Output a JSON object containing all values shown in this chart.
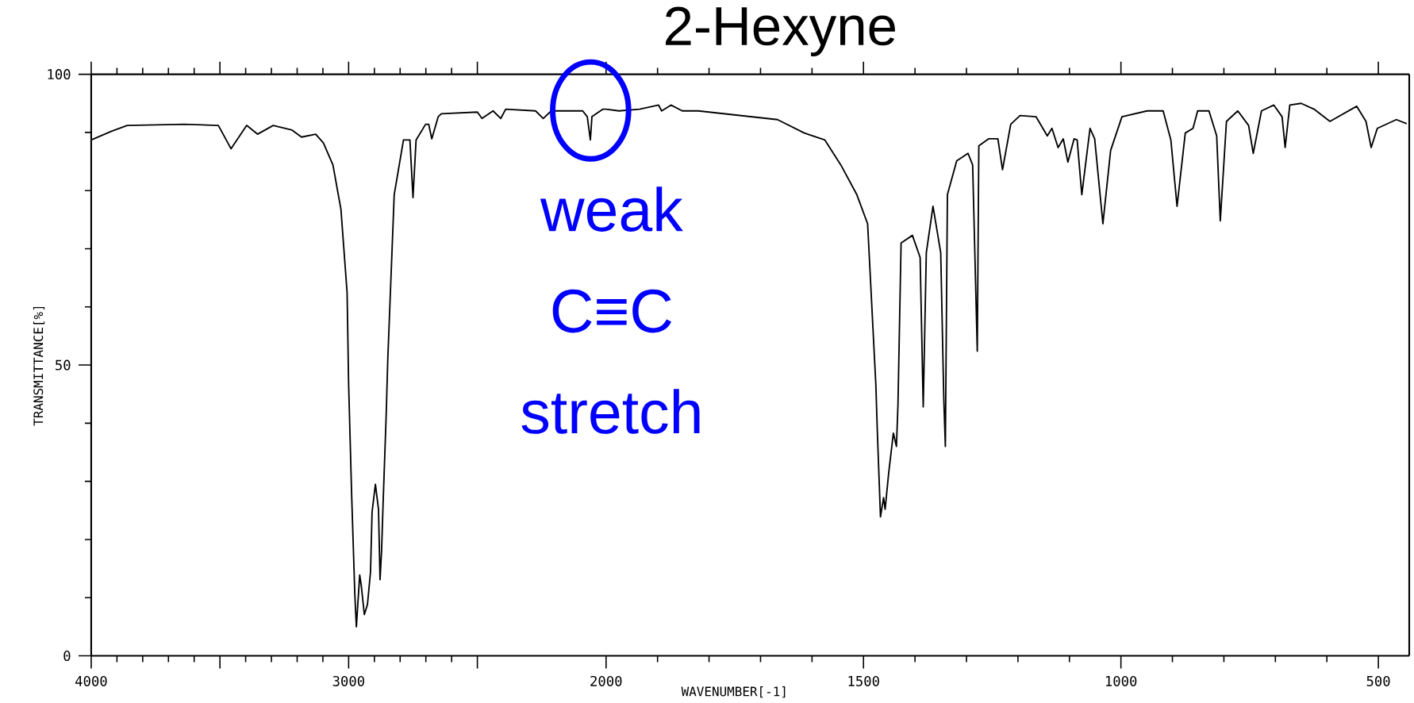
{
  "chart_data": [
    {
      "type": "line",
      "ylabel": "TRANSMITTANCE[%]",
      "annotations": [
        {
          "text": "weak C≡C stretch",
          "x": 2060,
          "y": 88.7
        }
      ],
      "x": [
        4000,
        3921,
        3860,
        3640,
        3506,
        3457,
        3396,
        3354,
        3293,
        3220,
        3183,
        3128,
        3098,
        3061,
        3030,
        3006,
        3000,
        2988,
        2976,
        2970,
        2957,
        2951,
        2939,
        2927,
        2915,
        2909,
        2896,
        2884,
        2878,
        2872,
        2866,
        2854,
        2848,
        2823,
        2787,
        2762,
        2750,
        2738,
        2701,
        2689,
        2677,
        2652,
        2640,
        2500,
        2482,
        2439,
        2409,
        2390,
        2274,
        2244,
        2213,
        2091,
        2073,
        2061,
        2055,
        2012,
        2000
      ],
      "series": [
        {
          "color": "#000000",
          "values": [
            88.7,
            90.2,
            91.2,
            91.4,
            91.2,
            87.2,
            91.2,
            89.7,
            91.2,
            90.4,
            89.2,
            89.7,
            88.2,
            84.4,
            76.8,
            62.5,
            46.6,
            27.2,
            10.6,
            5.0,
            13.9,
            12.1,
            7.1,
            8.8,
            14.4,
            24.7,
            29.5,
            25.2,
            13.1,
            18.1,
            26.4,
            41.6,
            50.9,
            79.3,
            88.7,
            88.7,
            78.8,
            88.7,
            91.4,
            91.4,
            88.9,
            92.7,
            93.2,
            93.5,
            92.4,
            93.7,
            92.4,
            94.0,
            93.7,
            92.4,
            93.7,
            93.7,
            92.7,
            88.7,
            92.7,
            94.0,
            94.0
          ]
        }
      ],
      "xlim": [
        4000,
        2000
      ],
      "ylim": [
        0,
        100
      ],
      "xticks": [
        4000,
        {
          "value": 3500,
          "label": null
        },
        3000,
        {
          "value": 2500,
          "label": null
        }
      ],
      "yticks": [
        0,
        50,
        100
      ],
      "marker": "none",
      "line_style": "solid"
    },
    {
      "type": "line",
      "title": "2-Hexyne",
      "xlabel": "WAVENUMBER[-1]",
      "x": [
        2000,
        1975,
        1935,
        1898,
        1892,
        1874,
        1852,
        1821,
        1667,
        1615,
        1575,
        1544,
        1513,
        1492,
        1476,
        1473,
        1467,
        1461,
        1458,
        1451,
        1442,
        1436,
        1433,
        1427,
        1405,
        1390,
        1384,
        1378,
        1365,
        1350,
        1344,
        1341,
        1337,
        1319,
        1297,
        1288,
        1279,
        1276,
        1257,
        1239,
        1230,
        1214,
        1196,
        1165,
        1143,
        1134,
        1122,
        1112,
        1103,
        1091,
        1085,
        1076,
        1060,
        1051,
        1035,
        1020,
        998,
        949,
        918,
        903,
        891,
        875,
        860,
        851,
        829,
        814,
        807,
        795,
        773,
        752,
        743,
        727,
        703,
        687,
        681,
        672,
        650,
        625,
        594,
        542,
        524,
        514,
        502,
        465,
        445
      ],
      "series": [
        {
          "color": "#000000",
          "values": [
            94.0,
            93.7,
            94.0,
            94.7,
            93.7,
            94.7,
            93.7,
            93.7,
            92.2,
            89.9,
            88.7,
            84.4,
            79.3,
            74.3,
            46.6,
            38.3,
            23.9,
            27.2,
            25.2,
            31.5,
            38.3,
            36.0,
            43.3,
            71.0,
            72.3,
            68.5,
            42.8,
            69.3,
            77.3,
            69.3,
            44.1,
            36.0,
            79.3,
            85.1,
            86.4,
            84.4,
            52.4,
            87.7,
            88.9,
            88.9,
            83.6,
            91.4,
            92.9,
            92.7,
            89.4,
            90.7,
            87.4,
            88.9,
            84.9,
            88.9,
            88.7,
            79.3,
            90.7,
            88.9,
            74.3,
            86.9,
            92.7,
            93.7,
            93.7,
            88.7,
            77.3,
            89.9,
            90.7,
            93.7,
            93.7,
            89.4,
            74.8,
            91.9,
            93.7,
            91.2,
            86.4,
            93.7,
            94.7,
            92.7,
            87.4,
            94.7,
            95.0,
            94.0,
            91.9,
            94.5,
            91.9,
            87.4,
            90.7,
            92.2,
            91.5
          ]
        }
      ],
      "xlim": [
        2000,
        440
      ],
      "ylim": [
        0,
        100
      ],
      "xticks": [
        2000,
        1500,
        1000,
        500
      ],
      "tick_labels": "x",
      "marker": "none",
      "line_style": "solid"
    }
  ]
}
